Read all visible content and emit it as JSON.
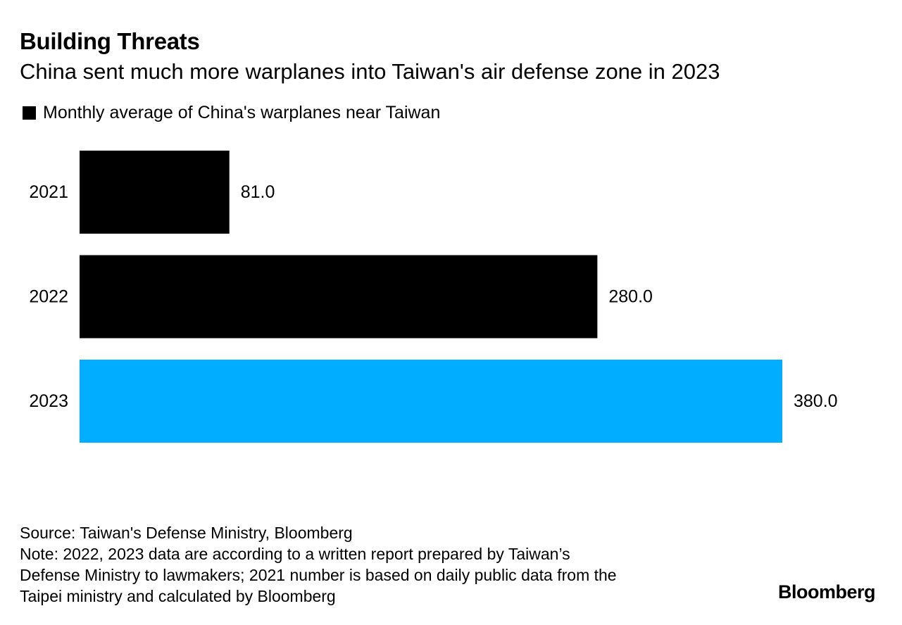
{
  "chart_data": {
    "type": "bar",
    "orientation": "horizontal",
    "title": "Building Threats",
    "subtitle": "China sent much more warplanes into Taiwan's air defense zone in 2023",
    "legend": [
      {
        "name": "Monthly average of China's warplanes near Taiwan",
        "color": "#000000"
      }
    ],
    "categories": [
      "2021",
      "2022",
      "2023"
    ],
    "values": [
      81.0,
      280.0,
      380.0
    ],
    "value_labels": [
      "81.0",
      "280.0",
      "380.0"
    ],
    "bar_colors": [
      "#000000",
      "#000000",
      "#00adff"
    ],
    "xlim": [
      0,
      380
    ],
    "xlabel": "",
    "ylabel": "",
    "grid": false
  },
  "footer": {
    "source": "Source: Taiwan's Defense Ministry, Bloomberg",
    "note_line1": "Note: 2022, 2023 data are according to a written report prepared by Taiwan’s",
    "note_line2": "Defense Ministry to lawmakers; 2021 number is based on daily public data from the",
    "note_line3": "Taipei ministry and calculated by Bloomberg"
  },
  "brand": "Bloomberg"
}
